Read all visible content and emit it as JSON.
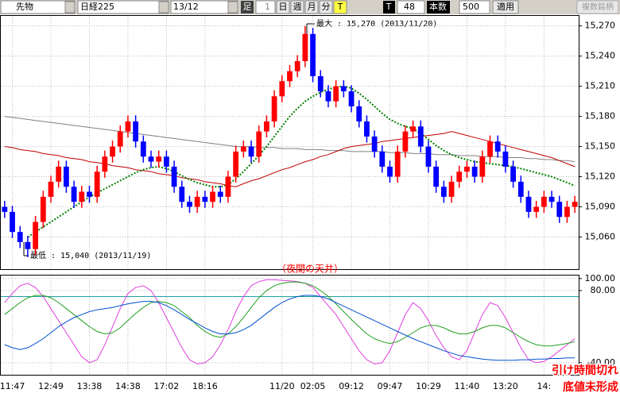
{
  "toolbar": {
    "symbol": "先物",
    "index": "日経225",
    "contract": "13/12",
    "bar_label": "足",
    "bar_value": "1",
    "day": "日",
    "week": "週",
    "month": "月",
    "minute": "分",
    "tick_on": "T",
    "tick": "T",
    "count_value": "48",
    "count_label": "本数",
    "max_value": "500",
    "apply": "適用",
    "multi": "複数銘柄"
  },
  "chart_data": [
    {
      "type": "candlestick",
      "up_color": "#ff0000",
      "down_color": "#0000ff",
      "categories": [
        null,
        "11:47",
        null,
        null,
        null,
        null,
        "12:49",
        null,
        null,
        null,
        null,
        "13:38",
        null,
        null,
        null,
        null,
        "14:38",
        null,
        null,
        null,
        null,
        "17:02",
        null,
        null,
        null,
        null,
        "18:16",
        null,
        null,
        null,
        null,
        null,
        null,
        null,
        null,
        null,
        "11/20",
        null,
        null,
        null,
        "02:05",
        null,
        null,
        null,
        null,
        "09:12",
        null,
        null,
        null,
        null,
        "09:47",
        null,
        null,
        null,
        null,
        "10:29",
        null,
        null,
        null,
        null,
        "11:40",
        null,
        null,
        null,
        null,
        "13:20",
        null,
        null,
        null,
        null,
        "14:",
        null,
        null,
        null,
        null
      ],
      "open": [
        15090,
        15085,
        15065,
        15055,
        15048,
        15075,
        15100,
        15115,
        15130,
        15110,
        15095,
        15105,
        15100,
        15125,
        15140,
        15150,
        15165,
        15175,
        15155,
        15140,
        15135,
        15140,
        15130,
        15110,
        15095,
        15090,
        15100,
        15095,
        15105,
        15100,
        15120,
        15145,
        15150,
        15140,
        15165,
        15175,
        15200,
        15215,
        15225,
        15235,
        15262,
        15220,
        15205,
        15195,
        15210,
        15205,
        15190,
        15175,
        15160,
        15145,
        15130,
        15120,
        15145,
        15165,
        15170,
        15150,
        15130,
        15110,
        15100,
        15115,
        15125,
        15130,
        15120,
        15140,
        15155,
        15145,
        15130,
        15115,
        15100,
        15085,
        15090,
        15100,
        15095,
        15080,
        15090
      ],
      "high": [
        15096,
        15091,
        15071,
        15061,
        15081,
        15106,
        15121,
        15136,
        15136,
        15116,
        15111,
        15111,
        15131,
        15146,
        15156,
        15171,
        15181,
        15181,
        15161,
        15146,
        15146,
        15146,
        15136,
        15116,
        15101,
        15106,
        15106,
        15111,
        15111,
        15126,
        15151,
        15156,
        15156,
        15171,
        15181,
        15206,
        15221,
        15231,
        15241,
        15270,
        15268,
        15226,
        15211,
        15216,
        15216,
        15211,
        15196,
        15181,
        15166,
        15151,
        15136,
        15151,
        15171,
        15176,
        15176,
        15156,
        15136,
        15116,
        15121,
        15131,
        15136,
        15136,
        15146,
        15161,
        15161,
        15151,
        15136,
        15121,
        15106,
        15096,
        15106,
        15106,
        15101,
        15096,
        15101
      ],
      "low": [
        15079,
        15059,
        15049,
        15040,
        15042,
        15069,
        15094,
        15109,
        15104,
        15089,
        15089,
        15094,
        15094,
        15119,
        15134,
        15144,
        15159,
        15149,
        15134,
        15129,
        15129,
        15124,
        15104,
        15089,
        15084,
        15084,
        15089,
        15089,
        15094,
        15094,
        15114,
        15139,
        15134,
        15134,
        15159,
        15169,
        15194,
        15209,
        15219,
        15229,
        15214,
        15199,
        15189,
        15189,
        15199,
        15184,
        15169,
        15154,
        15139,
        15124,
        15114,
        15114,
        15139,
        15159,
        15144,
        15124,
        15104,
        15094,
        15094,
        15109,
        15119,
        15114,
        15114,
        15134,
        15139,
        15124,
        15109,
        15094,
        15079,
        15079,
        15084,
        15089,
        15074,
        15074,
        15084
      ],
      "close": [
        15085,
        15065,
        15055,
        15048,
        15075,
        15100,
        15115,
        15130,
        15110,
        15095,
        15105,
        15100,
        15125,
        15140,
        15150,
        15165,
        15175,
        15155,
        15140,
        15135,
        15140,
        15130,
        15110,
        15095,
        15090,
        15100,
        15095,
        15105,
        15100,
        15120,
        15145,
        15150,
        15140,
        15165,
        15175,
        15200,
        15215,
        15225,
        15235,
        15262,
        15220,
        15205,
        15195,
        15210,
        15205,
        15190,
        15175,
        15160,
        15145,
        15130,
        15120,
        15145,
        15165,
        15170,
        15150,
        15130,
        15110,
        15100,
        15115,
        15125,
        15130,
        15120,
        15140,
        15155,
        15145,
        15130,
        15115,
        15100,
        15085,
        15090,
        15100,
        15095,
        15080,
        15090,
        15095
      ],
      "series": [
        {
          "color": "#808080",
          "values": [
            15180,
            15179,
            15178,
            15177,
            15176,
            15175,
            15174,
            15173,
            15172,
            15171,
            15170,
            15169,
            15168,
            15167,
            15166,
            15165,
            15164,
            15163,
            15162,
            15161,
            15160,
            15159,
            15158,
            15157,
            15156,
            15155,
            15154,
            15153,
            15152,
            15151,
            15150,
            15150,
            15150,
            15149,
            15149,
            15149,
            15148,
            15148,
            15148,
            15147,
            15147,
            15147,
            15146,
            15146,
            15146,
            15145,
            15145,
            15145,
            15145,
            15145,
            15144,
            15144,
            15144,
            15143,
            15143,
            15143,
            15142,
            15142,
            15142,
            15141,
            15141,
            15141,
            15140,
            15140,
            15140,
            15139,
            15139,
            15139,
            15138,
            15138,
            15137,
            15137,
            15136,
            15136,
            15135
          ]
        },
        {
          "color": "#c00000",
          "values": [
            15150,
            15149,
            15147,
            15146,
            15145,
            15143,
            15142,
            15141,
            15139,
            15138,
            15137,
            15135,
            15134,
            15133,
            15131,
            15130,
            15129,
            15127,
            15126,
            15125,
            15123,
            15122,
            15121,
            15119,
            15118,
            15117,
            15115,
            15114,
            15113,
            15111,
            15110,
            15113,
            15116,
            15118,
            15121,
            15124,
            15127,
            15129,
            15132,
            15135,
            15137,
            15140,
            15142,
            15145,
            15148,
            15150,
            15151,
            15152,
            15153,
            15155,
            15156,
            15157,
            15158,
            15159,
            15160,
            15161,
            15162,
            15163,
            15165,
            15163,
            15161,
            15159,
            15157,
            15155,
            15153,
            15151,
            15149,
            15147,
            15145,
            15143,
            15141,
            15139,
            15136,
            15133,
            15130
          ]
        },
        {
          "color": "#008000",
          "dash": true,
          "values": [
            null,
            null,
            null,
            15060,
            15065,
            15070,
            15075,
            15080,
            15085,
            15090,
            15095,
            15100,
            15104,
            15108,
            15112,
            15116,
            15120,
            15124,
            15127,
            15129,
            15130,
            15128,
            15125,
            15121,
            15117,
            15114,
            15112,
            15110,
            15110,
            15112,
            15118,
            15125,
            15133,
            15141,
            15150,
            15160,
            15170,
            15180,
            15188,
            15195,
            15200,
            15204,
            15207,
            15209,
            15210,
            15208,
            15203,
            15197,
            15190,
            15183,
            15177,
            15173,
            15170,
            15168,
            15163,
            15157,
            15151,
            15146,
            15142,
            15139,
            15137,
            15135,
            15134,
            15133,
            15132,
            15131,
            15130,
            15128,
            15126,
            15124,
            15122,
            15120,
            15117,
            15114,
            15111
          ]
        }
      ],
      "ylim": [
        15028,
        15280
      ],
      "yticks": [
        {
          "value": 15270,
          "label": "15,270"
        },
        {
          "value": 15240,
          "label": "15,240"
        },
        {
          "value": 15210,
          "label": "15,210"
        },
        {
          "value": 15180,
          "label": "15,180"
        },
        {
          "value": 15150,
          "label": "15,150"
        },
        {
          "value": 15120,
          "label": "15,120"
        },
        {
          "value": 15090,
          "label": "15,090"
        },
        {
          "value": 15060,
          "label": "15,060"
        }
      ],
      "grid": true,
      "annotations": {
        "max": "最大 : 15,270 (2013/11/20)",
        "min": "最低 : 15,040 (2013/11/19)",
        "night": "（夜間の天井）",
        "note1": "引け時間切れ",
        "note2": "底値未形成"
      }
    },
    {
      "type": "line",
      "series": [
        {
          "color": "#e040e0",
          "values": [
            60,
            75,
            88,
            92,
            85,
            70,
            50,
            30,
            10,
            -10,
            -30,
            -40,
            -35,
            -10,
            20,
            50,
            75,
            85,
            88,
            80,
            60,
            35,
            10,
            -15,
            -35,
            -42,
            -40,
            -30,
            -10,
            15,
            45,
            70,
            88,
            95,
            98,
            98,
            97,
            96,
            95,
            92,
            85,
            70,
            55,
            40,
            20,
            0,
            -20,
            -35,
            -42,
            -40,
            -20,
            10,
            40,
            60,
            50,
            30,
            5,
            -15,
            -30,
            -35,
            -20,
            10,
            40,
            60,
            55,
            35,
            10,
            -15,
            -35,
            -40,
            -38,
            -30,
            -20,
            -10,
            0
          ]
        },
        {
          "color": "#20a020",
          "values": [
            40,
            50,
            60,
            68,
            72,
            72,
            68,
            60,
            50,
            40,
            30,
            20,
            12,
            8,
            10,
            18,
            30,
            42,
            52,
            60,
            62,
            60,
            55,
            45,
            35,
            22,
            12,
            5,
            2,
            8,
            20,
            35,
            52,
            68,
            80,
            88,
            92,
            94,
            94,
            92,
            88,
            80,
            70,
            58,
            45,
            32,
            20,
            8,
            0,
            -5,
            -8,
            -5,
            2,
            10,
            18,
            22,
            22,
            18,
            12,
            8,
            8,
            12,
            18,
            22,
            22,
            18,
            10,
            2,
            -5,
            -10,
            -12,
            -12,
            -10,
            -8,
            -5
          ]
        },
        {
          "color": "#0050d0",
          "values": [
            -10,
            -15,
            -18,
            -15,
            -8,
            0,
            10,
            20,
            28,
            35,
            40,
            45,
            48,
            50,
            52,
            55,
            58,
            60,
            62,
            62,
            60,
            55,
            48,
            40,
            32,
            25,
            18,
            12,
            8,
            8,
            10,
            15,
            22,
            32,
            42,
            52,
            60,
            66,
            70,
            72,
            72,
            70,
            66,
            60,
            54,
            48,
            42,
            36,
            30,
            24,
            18,
            12,
            6,
            0,
            -5,
            -10,
            -15,
            -20,
            -24,
            -28,
            -30,
            -32,
            -34,
            -35,
            -36,
            -36,
            -36,
            -35,
            -35,
            -34,
            -34,
            -33,
            -33,
            -32,
            -32
          ]
        }
      ],
      "hlines": [
        70
      ],
      "ylim": [
        -60,
        105
      ],
      "yticks": [
        {
          "value": 100,
          "label": "100.00"
        },
        {
          "value": 80,
          "label": "80.00"
        },
        {
          "value": -40,
          "label": "-40.00"
        }
      ],
      "grid": true
    }
  ]
}
